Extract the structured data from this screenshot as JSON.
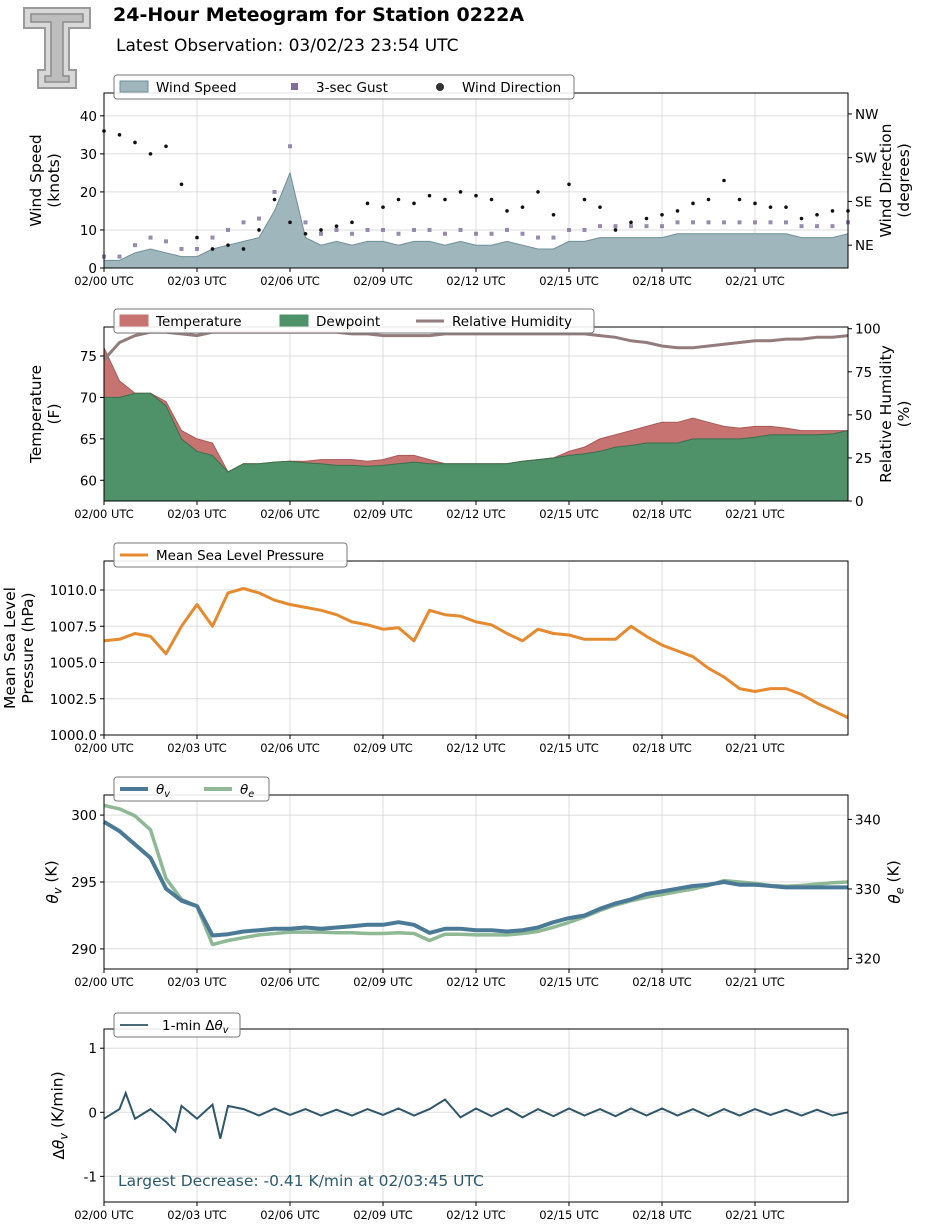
{
  "header": {
    "title": "24-Hour Meteogram for Station 0222A",
    "subtitle": "Latest Observation: 03/02/23 23:54 UTC",
    "logo_name": "texas-tech-double-t-logo"
  },
  "colors": {
    "wind_speed": "#9fb7bc",
    "wind_speed_edge": "#6f8f98",
    "gust": "#7e6e98",
    "wind_dir": "#111111",
    "temperature": "#c77371",
    "dewpoint": "#4f9168",
    "rh": "#937c7c",
    "pressure": "#e68a30",
    "theta_v": "#4a7a96",
    "theta_e": "#8fb894",
    "dtheta": "#30566a",
    "annotation": "#2d5a6c"
  },
  "chart_data": [
    {
      "id": "wind",
      "type": "area",
      "x_ticks": [
        "02/00 UTC",
        "02/03 UTC",
        "02/06 UTC",
        "02/09 UTC",
        "02/12 UTC",
        "02/15 UTC",
        "02/18 UTC",
        "02/21 UTC"
      ],
      "ylabel": [
        "Wind Speed",
        "(knots)"
      ],
      "ylim": [
        0,
        46
      ],
      "y_ticks": [
        0,
        10,
        20,
        30,
        40
      ],
      "y2label": [
        "Wind Direction",
        "(degrees)"
      ],
      "y2_ticks": [
        "NE",
        "SE",
        "SW",
        "NW"
      ],
      "legend": [
        "Wind Speed",
        "3-sec Gust",
        "Wind Direction"
      ],
      "grid": true,
      "x_hours": [
        0,
        0.5,
        1,
        1.5,
        2,
        2.5,
        3,
        3.5,
        4,
        4.5,
        5,
        5.5,
        6,
        6.5,
        7,
        7.5,
        8,
        8.5,
        9,
        9.5,
        10,
        10.5,
        11,
        11.5,
        12,
        12.5,
        13,
        13.5,
        14,
        14.5,
        15,
        15.5,
        16,
        16.5,
        17,
        17.5,
        18,
        18.5,
        19,
        19.5,
        20,
        20.5,
        21,
        21.5,
        22,
        22.5,
        23,
        23.5,
        24
      ],
      "series": [
        {
          "name": "Wind Speed",
          "values": [
            2,
            2,
            4,
            5,
            4,
            3,
            3,
            5,
            6,
            7,
            8,
            15,
            25,
            8,
            6,
            7,
            6,
            7,
            7,
            6,
            7,
            7,
            6,
            7,
            6,
            6,
            7,
            6,
            5,
            5,
            7,
            7,
            8,
            8,
            8,
            8,
            8,
            9,
            9,
            9,
            9,
            9,
            9,
            9,
            9,
            8,
            8,
            8,
            9
          ]
        },
        {
          "name": "3-sec Gust",
          "values": [
            3,
            3,
            6,
            8,
            7,
            5,
            5,
            8,
            10,
            12,
            13,
            20,
            32,
            12,
            9,
            10,
            9,
            10,
            10,
            9,
            10,
            10,
            9,
            10,
            9,
            9,
            10,
            9,
            8,
            8,
            10,
            10,
            11,
            11,
            11,
            11,
            11,
            12,
            12,
            12,
            12,
            12,
            12,
            12,
            12,
            11,
            11,
            11,
            12
          ]
        },
        {
          "name": "Wind Direction",
          "values": [
            36,
            35,
            33,
            30,
            32,
            22,
            8,
            5,
            6,
            5,
            10,
            18,
            12,
            9,
            10,
            11,
            12,
            17,
            16,
            18,
            17,
            19,
            18,
            20,
            19,
            18,
            15,
            16,
            20,
            14,
            22,
            18,
            16,
            10,
            12,
            13,
            14,
            15,
            17,
            18,
            23,
            18,
            17,
            16,
            16,
            13,
            14,
            15,
            15
          ]
        }
      ]
    },
    {
      "id": "temp",
      "type": "area",
      "x_ticks": [
        "02/00 UTC",
        "02/03 UTC",
        "02/06 UTC",
        "02/09 UTC",
        "02/12 UTC",
        "02/15 UTC",
        "02/18 UTC",
        "02/21 UTC"
      ],
      "ylabel": [
        "Temperature",
        "(F)"
      ],
      "ylim": [
        57.5,
        78.5
      ],
      "y_ticks": [
        60,
        65,
        70,
        75
      ],
      "y2label": [
        "Relative Humidity",
        "(%)"
      ],
      "y2lim": [
        0,
        101
      ],
      "y2_ticks": [
        0,
        25,
        50,
        75,
        100
      ],
      "legend": [
        "Temperature",
        "Dewpoint",
        "Relative Humidity"
      ],
      "grid": true,
      "x_hours": [
        0,
        0.5,
        1,
        1.5,
        2,
        2.5,
        3,
        3.5,
        4,
        4.5,
        5,
        5.5,
        6,
        6.5,
        7,
        7.5,
        8,
        8.5,
        9,
        9.5,
        10,
        10.5,
        11,
        11.5,
        12,
        12.5,
        13,
        13.5,
        14,
        14.5,
        15,
        15.5,
        16,
        16.5,
        17,
        17.5,
        18,
        18.5,
        19,
        19.5,
        20,
        20.5,
        21,
        21.5,
        22,
        22.5,
        23,
        23.5,
        24
      ],
      "series": [
        {
          "name": "Temperature",
          "values": [
            76,
            72,
            70.5,
            70.5,
            69.5,
            66,
            65,
            64.5,
            61,
            62,
            62,
            62.2,
            62.3,
            62.3,
            62.5,
            62.5,
            62.5,
            62.3,
            62.5,
            63,
            63,
            62.5,
            62,
            62,
            62,
            62,
            62,
            62.3,
            62.5,
            62.7,
            63.5,
            64,
            65,
            65.5,
            66,
            66.5,
            67,
            67,
            67.5,
            67,
            66.5,
            66.3,
            66.5,
            66.5,
            66.3,
            66,
            66,
            66,
            66
          ]
        },
        {
          "name": "Dewpoint",
          "values": [
            70,
            70,
            70.5,
            70.5,
            69,
            65,
            63.5,
            63,
            61,
            62,
            62,
            62.2,
            62.3,
            62.1,
            62,
            61.8,
            61.8,
            61.7,
            61.8,
            62,
            62.2,
            62,
            62,
            62,
            62,
            62,
            62,
            62.3,
            62.5,
            62.7,
            63,
            63.2,
            63.5,
            64,
            64.2,
            64.5,
            64.5,
            64.5,
            65,
            65,
            65,
            65,
            65.2,
            65.5,
            65.5,
            65.5,
            65.5,
            65.6,
            66
          ]
        },
        {
          "name": "Relative Humidity",
          "values": [
            82,
            92,
            96,
            98,
            98,
            97,
            96,
            98,
            98,
            98,
            98,
            98,
            98,
            98,
            98,
            98,
            97,
            97,
            96,
            96,
            96,
            96,
            97,
            97,
            97,
            97,
            97,
            97,
            97,
            97,
            97,
            97,
            96,
            95,
            93,
            92,
            90,
            89,
            89,
            90,
            91,
            92,
            93,
            93,
            94,
            94,
            95,
            95,
            96
          ]
        }
      ]
    },
    {
      "id": "pressure",
      "type": "line",
      "x_ticks": [
        "02/00 UTC",
        "02/03 UTC",
        "02/06 UTC",
        "02/09 UTC",
        "02/12 UTC",
        "02/15 UTC",
        "02/18 UTC",
        "02/21 UTC"
      ],
      "ylabel": [
        "Mean Sea Level",
        "Pressure (hPa)"
      ],
      "ylim": [
        1000.0,
        1012.0
      ],
      "y_ticks": [
        "1000.0",
        "1002.5",
        "1005.0",
        "1007.5",
        "1010.0"
      ],
      "legend": [
        "Mean Sea Level Pressure"
      ],
      "grid": true,
      "x_hours": [
        0,
        0.5,
        1,
        1.5,
        2,
        2.5,
        3,
        3.5,
        4,
        4.5,
        5,
        5.5,
        6,
        6.5,
        7,
        7.5,
        8,
        8.5,
        9,
        9.5,
        10,
        10.5,
        11,
        11.5,
        12,
        12.5,
        13,
        13.5,
        14,
        14.5,
        15,
        15.5,
        16,
        16.5,
        17,
        17.5,
        18,
        18.5,
        19,
        19.5,
        20,
        20.5,
        21,
        21.5,
        22,
        22.5,
        23,
        23.5,
        24
      ],
      "series": [
        {
          "name": "Mean Sea Level Pressure",
          "values": [
            1006.5,
            1006.6,
            1007.0,
            1006.8,
            1005.6,
            1007.5,
            1009.0,
            1007.5,
            1009.8,
            1010.1,
            1009.8,
            1009.3,
            1009.0,
            1008.8,
            1008.6,
            1008.3,
            1007.8,
            1007.6,
            1007.3,
            1007.4,
            1006.5,
            1008.6,
            1008.3,
            1008.2,
            1007.8,
            1007.6,
            1007.0,
            1006.5,
            1007.3,
            1007.0,
            1006.9,
            1006.6,
            1006.6,
            1006.6,
            1007.5,
            1006.8,
            1006.2,
            1005.8,
            1005.4,
            1004.6,
            1004.0,
            1003.2,
            1003.0,
            1003.2,
            1003.2,
            1002.8,
            1002.2,
            1001.7,
            1001.2
          ]
        }
      ]
    },
    {
      "id": "theta",
      "type": "line",
      "x_ticks": [
        "02/00 UTC",
        "02/03 UTC",
        "02/06 UTC",
        "02/09 UTC",
        "02/12 UTC",
        "02/15 UTC",
        "02/18 UTC",
        "02/21 UTC"
      ],
      "ylabel": [
        "θv (K)"
      ],
      "ylim": [
        288.5,
        301.5
      ],
      "y_ticks": [
        290,
        295,
        300
      ],
      "y2label": [
        "θe (K)"
      ],
      "y2lim": [
        318.5,
        343.5
      ],
      "y2_ticks": [
        320,
        330,
        340
      ],
      "legend": [
        "θv",
        "θe"
      ],
      "grid": true,
      "x_hours": [
        0,
        0.5,
        1,
        1.5,
        2,
        2.5,
        3,
        3.5,
        4,
        4.5,
        5,
        5.5,
        6,
        6.5,
        7,
        7.5,
        8,
        8.5,
        9,
        9.5,
        10,
        10.5,
        11,
        11.5,
        12,
        12.5,
        13,
        13.5,
        14,
        14.5,
        15,
        15.5,
        16,
        16.5,
        17,
        17.5,
        18,
        18.5,
        19,
        19.5,
        20,
        20.5,
        21,
        21.5,
        22,
        22.5,
        23,
        23.5,
        24
      ],
      "series": [
        {
          "name": "θv",
          "values": [
            299.5,
            298.8,
            297.8,
            296.8,
            294.5,
            293.6,
            293.2,
            291.0,
            291.1,
            291.3,
            291.4,
            291.5,
            291.5,
            291.6,
            291.5,
            291.6,
            291.7,
            291.8,
            291.8,
            292.0,
            291.8,
            291.2,
            291.5,
            291.5,
            291.4,
            291.4,
            291.3,
            291.4,
            291.6,
            292.0,
            292.3,
            292.5,
            293.0,
            293.4,
            293.7,
            294.1,
            294.3,
            294.5,
            294.7,
            294.8,
            295.0,
            294.8,
            294.8,
            294.7,
            294.6,
            294.6,
            294.6,
            294.6,
            294.6
          ]
        },
        {
          "name": "θe",
          "values": [
            342.0,
            341.5,
            340.5,
            338.5,
            331.5,
            328.5,
            327.5,
            322.0,
            322.6,
            323.0,
            323.4,
            323.6,
            323.8,
            323.8,
            323.8,
            323.7,
            323.7,
            323.6,
            323.6,
            323.7,
            323.6,
            322.6,
            323.5,
            323.5,
            323.4,
            323.4,
            323.4,
            323.6,
            323.9,
            324.5,
            325.2,
            326.0,
            326.9,
            327.7,
            328.3,
            328.8,
            329.2,
            329.6,
            330.0,
            330.5,
            331.2,
            331.0,
            330.8,
            330.5,
            330.4,
            330.5,
            330.7,
            330.9,
            331.0
          ]
        }
      ]
    },
    {
      "id": "dtheta",
      "type": "line",
      "x_ticks": [
        "02/00 UTC",
        "02/03 UTC",
        "02/06 UTC",
        "02/09 UTC",
        "02/12 UTC",
        "02/15 UTC",
        "02/18 UTC",
        "02/21 UTC"
      ],
      "ylabel": [
        "Δθv (K/min)"
      ],
      "ylim": [
        -1.4,
        1.3
      ],
      "y_ticks": [
        -1,
        0,
        1
      ],
      "legend": [
        "1-min Δθv"
      ],
      "annotation": "Largest Decrease: -0.41 K/min at 02/03:45 UTC",
      "grid": true,
      "x_hours": [
        0,
        0.5,
        0.7,
        1,
        1.5,
        2,
        2.3,
        2.5,
        3,
        3.5,
        3.75,
        4,
        4.5,
        5,
        5.5,
        6,
        6.5,
        7,
        7.5,
        8,
        8.5,
        9,
        9.5,
        10,
        10.5,
        11,
        11.5,
        12,
        12.5,
        13,
        13.5,
        14,
        14.5,
        15,
        15.5,
        16,
        16.5,
        17,
        17.5,
        18,
        18.5,
        19,
        19.5,
        20,
        20.5,
        21,
        21.5,
        22,
        22.5,
        23,
        23.5,
        24
      ],
      "series": [
        {
          "name": "1-min Δθv",
          "values": [
            -0.1,
            0.05,
            0.3,
            -0.1,
            0.05,
            -0.15,
            -0.3,
            0.1,
            -0.1,
            0.12,
            -0.41,
            0.1,
            0.05,
            -0.05,
            0.06,
            -0.04,
            0.05,
            -0.05,
            0.04,
            -0.05,
            0.05,
            -0.04,
            0.06,
            -0.05,
            0.05,
            0.2,
            -0.08,
            0.06,
            -0.06,
            0.06,
            -0.08,
            0.05,
            -0.06,
            0.06,
            -0.05,
            0.05,
            -0.06,
            0.06,
            -0.05,
            0.06,
            -0.05,
            0.05,
            -0.06,
            0.05,
            -0.05,
            0.05,
            -0.04,
            0.04,
            -0.05,
            0.04,
            -0.05,
            0
          ]
        }
      ]
    }
  ]
}
